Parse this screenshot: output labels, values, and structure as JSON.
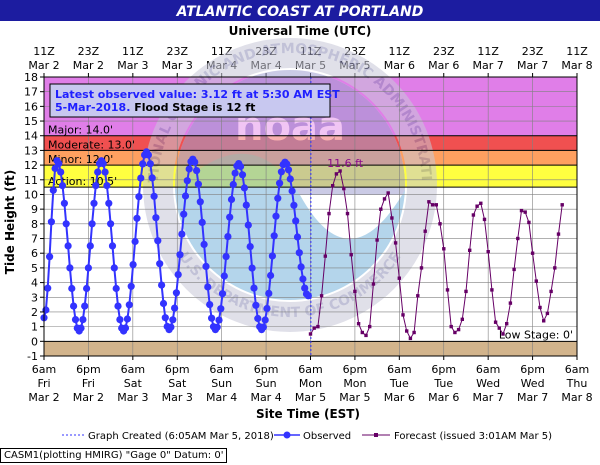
{
  "chart_data": {
    "type": "line",
    "title": "ATLANTIC COAST AT PORTLAND",
    "top_axis_title": "Universal Time (UTC)",
    "ylabel": "Tide Height (ft)",
    "xlabel": "Site Time (EST)",
    "ylim": [
      -1,
      18
    ],
    "yticks": [
      -1,
      0,
      1,
      2,
      3,
      4,
      5,
      6,
      7,
      8,
      9,
      10,
      11,
      12,
      13,
      14,
      15,
      16,
      17,
      18
    ],
    "grid": true,
    "x_start": "Mar 2 6am EST",
    "x_end": "Mar 8 6am EST",
    "x_units": "hours after Mar 2 6am EST",
    "top_ticks": [
      {
        "line1": "11Z",
        "line2": "Mar 2"
      },
      {
        "line1": "23Z",
        "line2": "Mar 2"
      },
      {
        "line1": "11Z",
        "line2": "Mar 3"
      },
      {
        "line1": "23Z",
        "line2": "Mar 3"
      },
      {
        "line1": "11Z",
        "line2": "Mar 4"
      },
      {
        "line1": "23Z",
        "line2": "Mar 4"
      },
      {
        "line1": "11Z",
        "line2": "Mar 5"
      },
      {
        "line1": "23Z",
        "line2": "Mar 5"
      },
      {
        "line1": "11Z",
        "line2": "Mar 6"
      },
      {
        "line1": "23Z",
        "line2": "Mar 6"
      },
      {
        "line1": "11Z",
        "line2": "Mar 7"
      },
      {
        "line1": "23Z",
        "line2": "Mar 7"
      },
      {
        "line1": "11Z",
        "line2": "Mar 8"
      }
    ],
    "bottom_ticks": [
      {
        "line1": "6am",
        "line2": "Fri",
        "line3": "Mar 2"
      },
      {
        "line1": "6pm",
        "line2": "Fri",
        "line3": "Mar 2"
      },
      {
        "line1": "6am",
        "line2": "Sat",
        "line3": "Mar 3"
      },
      {
        "line1": "6pm",
        "line2": "Sat",
        "line3": "Mar 3"
      },
      {
        "line1": "6am",
        "line2": "Sun",
        "line3": "Mar 4"
      },
      {
        "line1": "6pm",
        "line2": "Sun",
        "line3": "Mar 4"
      },
      {
        "line1": "6am",
        "line2": "Mon",
        "line3": "Mar 5"
      },
      {
        "line1": "6pm",
        "line2": "Mon",
        "line3": "Mar 5"
      },
      {
        "line1": "6am",
        "line2": "Tue",
        "line3": "Mar 6"
      },
      {
        "line1": "6pm",
        "line2": "Tue",
        "line3": "Mar 6"
      },
      {
        "line1": "6am",
        "line2": "Wed",
        "line3": "Mar 7"
      },
      {
        "line1": "6pm",
        "line2": "Wed",
        "line3": "Mar 7"
      },
      {
        "line1": "6am",
        "line2": "Thu",
        "line3": "Mar 8"
      }
    ],
    "bands": [
      {
        "name": "major",
        "from": 14,
        "to": 18,
        "color": "#e07ee8"
      },
      {
        "name": "moderate",
        "from": 13,
        "to": 14,
        "color": "#f05050"
      },
      {
        "name": "minor",
        "from": 12,
        "to": 13,
        "color": "#ffa060"
      },
      {
        "name": "action",
        "from": 10.5,
        "to": 12,
        "color": "#ffff40"
      },
      {
        "name": "low",
        "from": -1,
        "to": 0,
        "color": "#d2b48c"
      }
    ],
    "stage_labels": [
      {
        "text": "Major: 14.0'",
        "y": 14
      },
      {
        "text": "Moderate: 13.0'",
        "y": 13
      },
      {
        "text": "Minor: 12.0'",
        "y": 12
      },
      {
        "text": "Action: 10.5'",
        "y": 10.5
      }
    ],
    "low_stage_label": "Low Stage: 0'",
    "info_box": {
      "line1": "Latest observed value: 3.12 ft at 5:30 AM EST",
      "line2_date": "5-Mar-2018.",
      "line2_rest": "Flood Stage is 12 ft"
    },
    "peak_label": "11.6 ft",
    "created_x": 72.1,
    "series": [
      {
        "name": "Observed",
        "color": "#3333ff",
        "points": [
          [
            0,
            1.6
          ],
          [
            3.5,
            12.3
          ],
          [
            9.5,
            0.7
          ],
          [
            15.5,
            12.3
          ],
          [
            21.5,
            0.7
          ],
          [
            27.7,
            12.9
          ],
          [
            33.8,
            0.8
          ],
          [
            40.2,
            12.4
          ],
          [
            46.3,
            0.8
          ],
          [
            52.6,
            12.1
          ],
          [
            58.8,
            0.8
          ],
          [
            65.1,
            12.2
          ],
          [
            71.4,
            3.1
          ]
        ]
      },
      {
        "name": "Forecast (issued 3:01AM Mar 5)",
        "color": "#660066",
        "points": [
          [
            72,
            0.5
          ],
          [
            73,
            0.9
          ],
          [
            74,
            1.0
          ],
          [
            75,
            3.1
          ],
          [
            76,
            5.8
          ],
          [
            77,
            8.7
          ],
          [
            78,
            10.6
          ],
          [
            79,
            11.4
          ],
          [
            80,
            11.6
          ],
          [
            81,
            10.4
          ],
          [
            82,
            8.7
          ],
          [
            83,
            5.9
          ],
          [
            84,
            3.4
          ],
          [
            85,
            1.2
          ],
          [
            86,
            0.6
          ],
          [
            87,
            0.4
          ],
          [
            88,
            1.0
          ],
          [
            89,
            3.9
          ],
          [
            90,
            6.9
          ],
          [
            91,
            9.0
          ],
          [
            92,
            9.7
          ],
          [
            93,
            10.1
          ],
          [
            94,
            8.4
          ],
          [
            95,
            6.7
          ],
          [
            96,
            4.3
          ],
          [
            97,
            1.8
          ],
          [
            98,
            0.7
          ],
          [
            99,
            0.2
          ],
          [
            100,
            0.6
          ],
          [
            101,
            3.1
          ],
          [
            102,
            5.0
          ],
          [
            103,
            7.5
          ],
          [
            104,
            9.5
          ],
          [
            105,
            9.3
          ],
          [
            106,
            9.3
          ],
          [
            107,
            8.0
          ],
          [
            108,
            6.3
          ],
          [
            109,
            3.5
          ],
          [
            110,
            1.0
          ],
          [
            111,
            0.6
          ],
          [
            112,
            0.8
          ],
          [
            113,
            1.5
          ],
          [
            114,
            3.4
          ],
          [
            115,
            6.2
          ],
          [
            116,
            8.6
          ],
          [
            117,
            9.2
          ],
          [
            118,
            9.4
          ],
          [
            119,
            8.3
          ],
          [
            120,
            6.1
          ],
          [
            121,
            3.5
          ],
          [
            122,
            1.3
          ],
          [
            123,
            0.9
          ],
          [
            124,
            0.5
          ],
          [
            125,
            1.2
          ],
          [
            126,
            2.6
          ],
          [
            127,
            4.9
          ],
          [
            128,
            7.0
          ],
          [
            129,
            8.9
          ],
          [
            130,
            8.8
          ],
          [
            131,
            8.1
          ],
          [
            132,
            6.0
          ],
          [
            133,
            4.1
          ],
          [
            134,
            2.3
          ],
          [
            135,
            1.4
          ],
          [
            136,
            1.9
          ],
          [
            137,
            3.4
          ],
          [
            138,
            5.0
          ],
          [
            139,
            7.3
          ],
          [
            140,
            9.3
          ]
        ]
      }
    ],
    "legend": {
      "created": "Graph Created (6:05AM Mar 5, 2018)",
      "observed": "Observed",
      "forecast": "Forecast (issued 3:01AM Mar 5)"
    }
  },
  "footer": {
    "text": "CASM1(plotting HMIRG) \"Gage 0\" Datum:  0'"
  },
  "watermark": {
    "ring_text_top": "NATIONAL OCEANIC AND ATMOSPHERIC ADMINISTRATION",
    "ring_text_bottom": "U.S. DEPARTMENT OF COMMERCE",
    "center_text": "noaa"
  }
}
